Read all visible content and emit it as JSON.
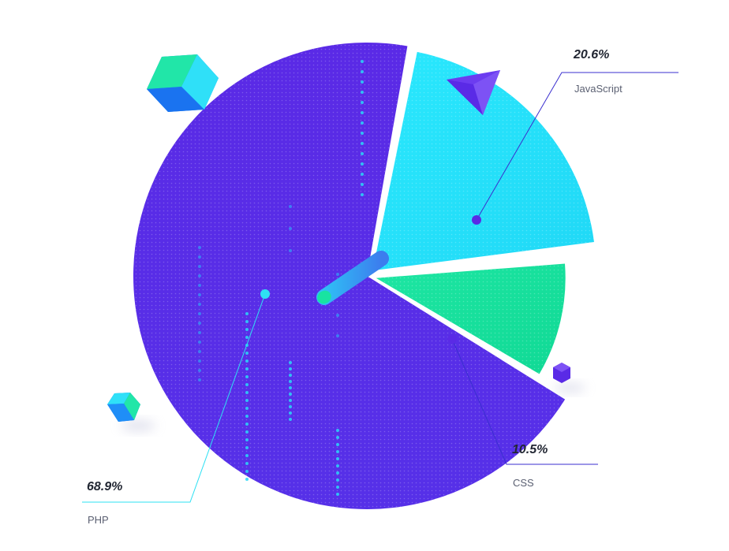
{
  "chart_data": {
    "type": "pie",
    "slices": [
      {
        "name": "PHP",
        "value": 68.9,
        "label": "68.9%",
        "color": "#5b2ee8"
      },
      {
        "name": "JavaScript",
        "value": 20.6,
        "label": "20.6%",
        "color": "#27e6fb"
      },
      {
        "name": "CSS",
        "value": 10.5,
        "label": "10.5%",
        "color": "#17e09b"
      }
    ],
    "title": "",
    "legend": "callout-labels"
  }
}
